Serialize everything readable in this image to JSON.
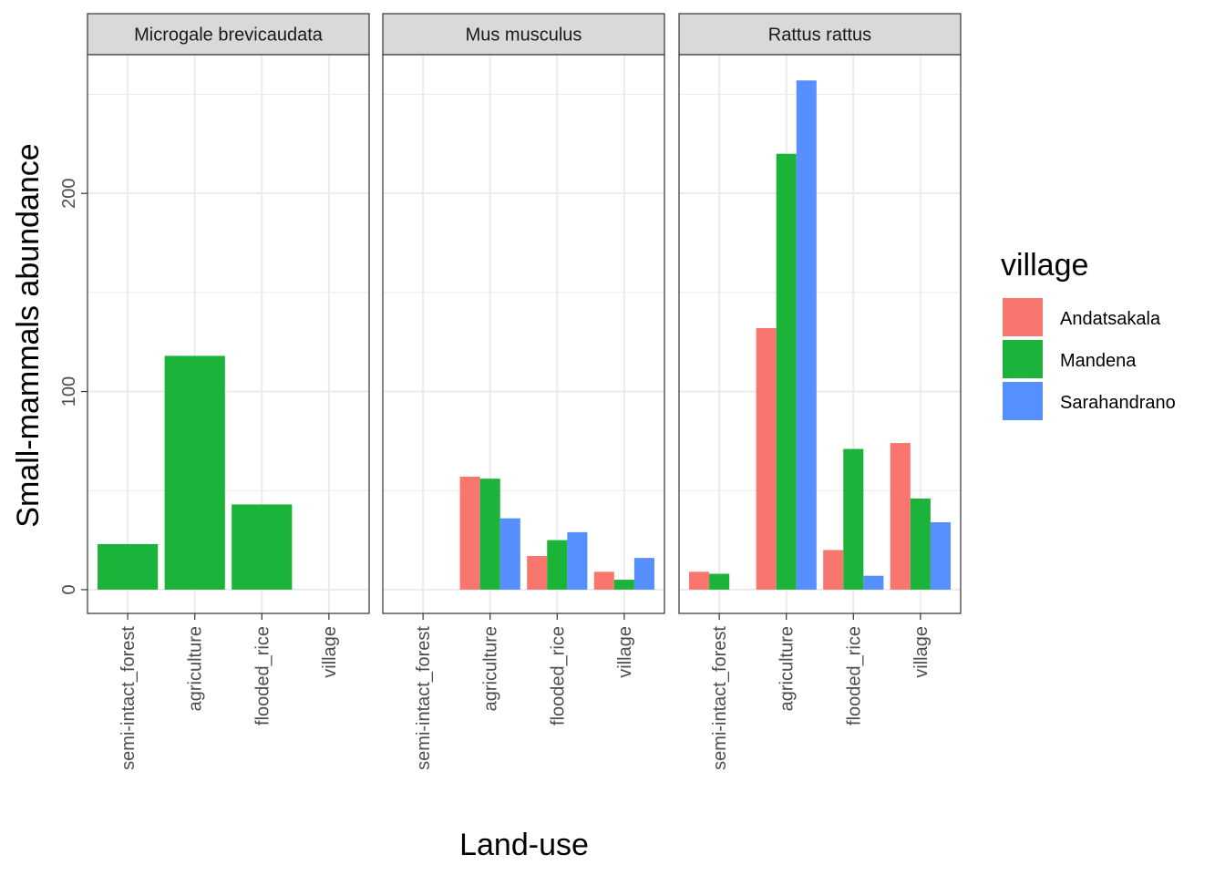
{
  "chart_data": {
    "type": "bar",
    "xlabel": "Land-use",
    "ylabel": "Small-mammals abundance",
    "categories": [
      "semi-intact_forest",
      "agriculture",
      "flooded_rice",
      "village"
    ],
    "ylim": [
      -12,
      270
    ],
    "yticks": [
      0,
      100,
      200
    ],
    "grid": true,
    "legend": {
      "title": "village",
      "position": "right",
      "entries": [
        {
          "name": "Andatsakala",
          "color": "#F8766D"
        },
        {
          "name": "Mandena",
          "color": "#1CB33A"
        },
        {
          "name": "Sarahandrano",
          "color": "#568FFF"
        }
      ]
    },
    "panels": [
      {
        "title": "Microgale brevicaudata",
        "series": [
          {
            "name": "Mandena",
            "values": [
              23,
              118,
              43,
              null
            ]
          }
        ]
      },
      {
        "title": "Mus musculus",
        "series": [
          {
            "name": "Andatsakala",
            "values": [
              null,
              57,
              17,
              9
            ]
          },
          {
            "name": "Mandena",
            "values": [
              null,
              56,
              25,
              5
            ]
          },
          {
            "name": "Sarahandrano",
            "values": [
              null,
              36,
              29,
              16
            ]
          }
        ]
      },
      {
        "title": "Rattus rattus",
        "series": [
          {
            "name": "Andatsakala",
            "values": [
              9,
              132,
              20,
              74
            ]
          },
          {
            "name": "Mandena",
            "values": [
              8,
              220,
              71,
              46
            ]
          },
          {
            "name": "Sarahandrano",
            "values": [
              null,
              257,
              7,
              34
            ]
          }
        ]
      }
    ]
  }
}
